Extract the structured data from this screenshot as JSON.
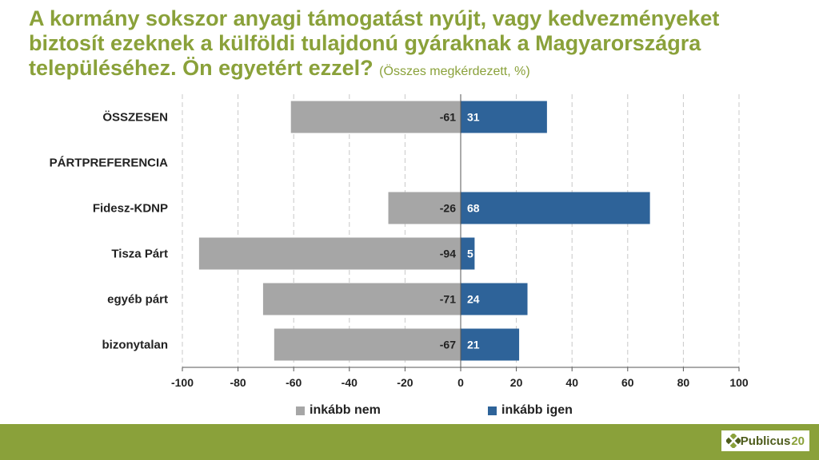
{
  "title": {
    "main": "A kormány sokszor anyagi támogatást nyújt, vagy kedvezményeket biztosít ezeknek a külföldi tulajdonú gyáraknak a Magyarországra településéhez. Ön egyetért ezzel?",
    "sub": "(Összes megkérdezett, %)"
  },
  "chart_data": {
    "type": "bar",
    "orientation": "horizontal",
    "categories": [
      "ÖSSZESEN",
      "PÁRTPREFERENCIA",
      "Fidesz-KDNP",
      "Tisza Párt",
      "egyéb párt",
      "bizonytalan"
    ],
    "series": [
      {
        "name": "inkább nem",
        "values": [
          -61,
          null,
          -26,
          -94,
          -71,
          -67
        ],
        "color": "#a6a6a6"
      },
      {
        "name": "inkább igen",
        "values": [
          31,
          null,
          68,
          5,
          24,
          21
        ],
        "color": "#2e6399"
      }
    ],
    "xlim": [
      -100,
      100
    ],
    "xticks": [
      -100,
      -80,
      -60,
      -40,
      -20,
      0,
      20,
      40,
      60,
      80,
      100
    ],
    "grid": true,
    "legend_position": "bottom"
  },
  "legend": {
    "no_label": "inkább nem",
    "yes_label": "inkább igen"
  },
  "logo": {
    "text": "Publicus",
    "number": "20",
    "icon": "diamond-cluster-icon"
  },
  "colors": {
    "accent": "#8aa13a",
    "no": "#a6a6a6",
    "yes": "#2e6399"
  }
}
